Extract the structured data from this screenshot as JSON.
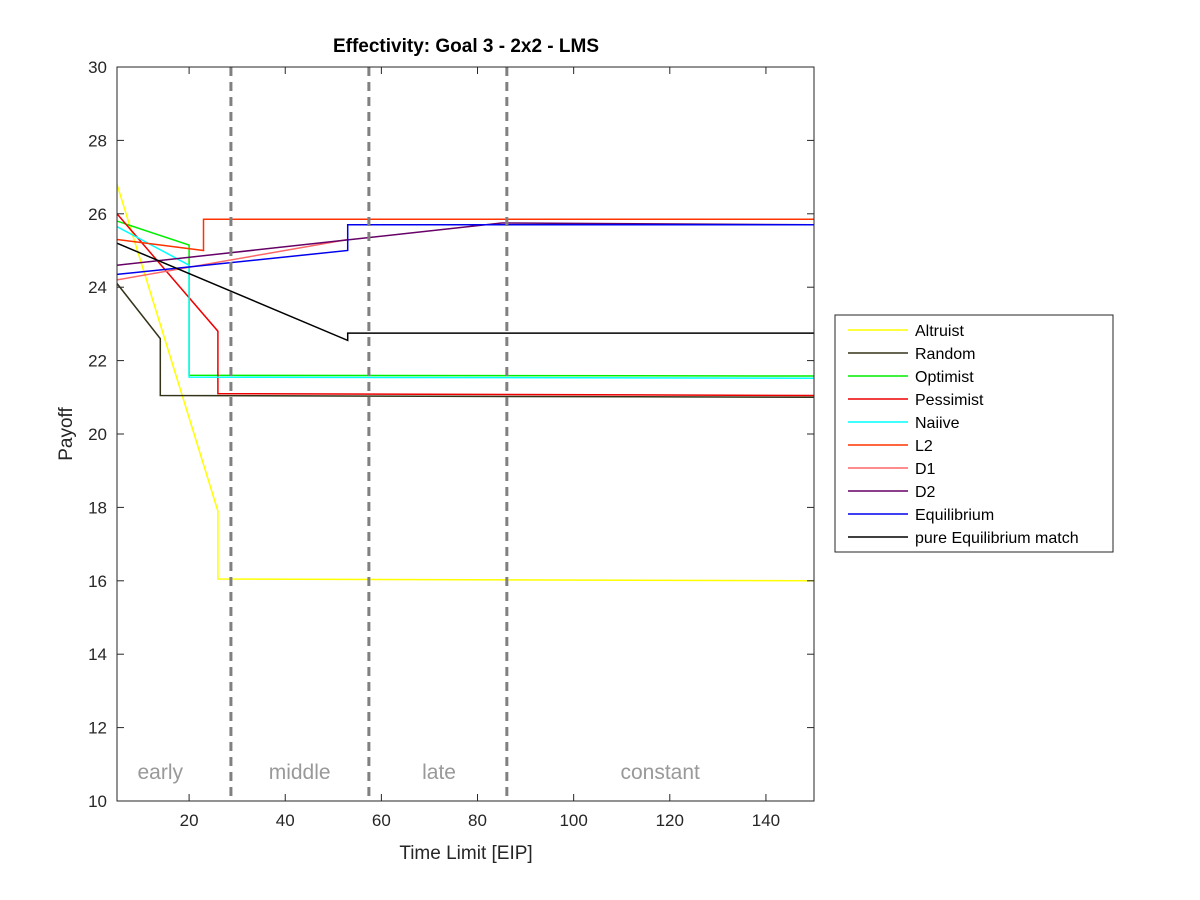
{
  "chart_data": {
    "type": "line",
    "title": "Effectivity: Goal 3 - 2x2 - LMS",
    "xlabel": "Time Limit [EIP]",
    "ylabel": "Payoff",
    "xlim": [
      5,
      150
    ],
    "ylim": [
      10,
      30
    ],
    "xticks": [
      20,
      40,
      60,
      80,
      100,
      120,
      140
    ],
    "yticks": [
      10,
      12,
      14,
      16,
      18,
      20,
      22,
      24,
      26,
      28,
      30
    ],
    "grid": false,
    "legend_position": "outside-right",
    "phase_boundaries": [
      28.7,
      57.4,
      86.1
    ],
    "phase_labels": [
      {
        "text": "early",
        "x": 14
      },
      {
        "text": "middle",
        "x": 43
      },
      {
        "text": "late",
        "x": 72
      },
      {
        "text": "constant",
        "x": 118
      }
    ],
    "series": [
      {
        "name": "Altruist",
        "color": "#ffff00",
        "x": [
          5,
          26,
          26,
          150
        ],
        "y": [
          26.8,
          17.9,
          16.05,
          16.0
        ]
      },
      {
        "name": "Random",
        "color": "#333319",
        "x": [
          5,
          14,
          14,
          150
        ],
        "y": [
          24.1,
          22.6,
          21.05,
          21.0
        ]
      },
      {
        "name": "Optimist",
        "color": "#00ee00",
        "x": [
          5,
          20,
          20,
          150
        ],
        "y": [
          25.8,
          25.15,
          21.6,
          21.58
        ]
      },
      {
        "name": "Pessimist",
        "color": "#ee0000",
        "x": [
          5,
          26,
          26,
          150
        ],
        "y": [
          26.0,
          22.8,
          21.1,
          21.05
        ]
      },
      {
        "name": "Naiive",
        "color": "#00ffff",
        "x": [
          5,
          20,
          20,
          150
        ],
        "y": [
          25.65,
          24.6,
          21.55,
          21.52
        ]
      },
      {
        "name": "L2",
        "color": "#ff3300",
        "x": [
          5,
          23,
          23,
          150
        ],
        "y": [
          25.3,
          25.0,
          25.85,
          25.85
        ]
      },
      {
        "name": "D1",
        "color": "#ff6666",
        "x": [
          5,
          53
        ],
        "y": [
          24.2,
          25.3
        ]
      },
      {
        "name": "D2",
        "color": "#660066",
        "x": [
          5,
          85,
          150
        ],
        "y": [
          24.6,
          25.75,
          25.7
        ]
      },
      {
        "name": "Equilibrium",
        "color": "#0000ee",
        "x": [
          5,
          53,
          53,
          150
        ],
        "y": [
          24.35,
          25.0,
          25.7,
          25.7
        ]
      },
      {
        "name": "pure Equilibrium match",
        "color": "#000000",
        "x": [
          5,
          53,
          53,
          150
        ],
        "y": [
          25.2,
          22.55,
          22.75,
          22.75
        ]
      }
    ]
  }
}
